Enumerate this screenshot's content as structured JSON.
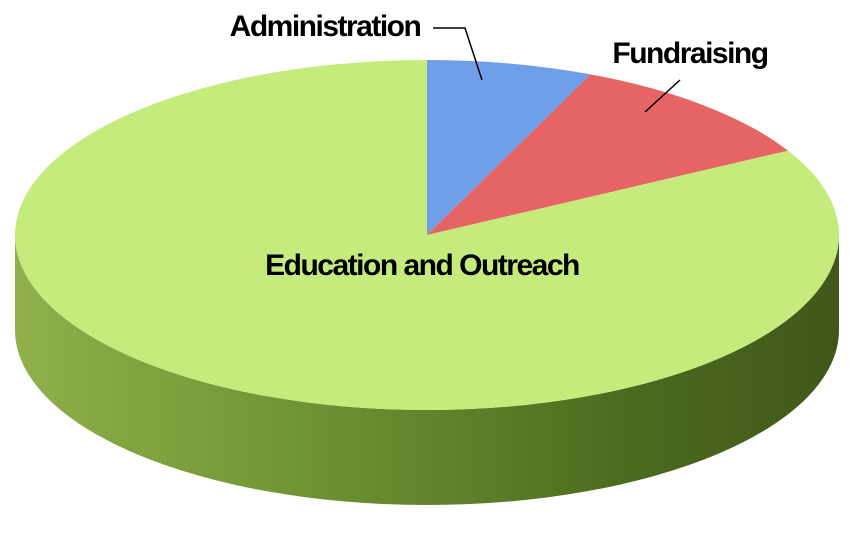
{
  "chart_data": {
    "type": "pie",
    "categories": [
      "Administration",
      "Fundraising",
      "Education and Outreach"
    ],
    "values": [
      6.5,
      10.5,
      83
    ],
    "colors": [
      "#6f9fe8",
      "#e66464",
      "#c4eb7c"
    ]
  }
}
